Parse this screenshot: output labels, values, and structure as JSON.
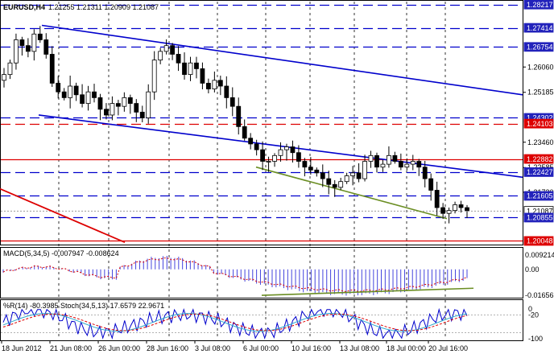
{
  "symbol_header": {
    "symbol": "EURUSD,H4",
    "ohlc": "1.21255 1.21311 1.20909 1.21087"
  },
  "main_panel": {
    "price_range": [
      1.1995,
      1.2832
    ],
    "y_ticks": [
      "1.26060",
      "1.25185",
      "1.23460",
      "1.22585",
      "1.21730"
    ],
    "level_badges": [
      {
        "label": "1.28217",
        "price": 1.28217,
        "style": "blue-dashed"
      },
      {
        "label": "1.27414",
        "price": 1.27414,
        "style": "blue-dashed"
      },
      {
        "label": "1.26754",
        "price": 1.26754,
        "style": "blue-dashed"
      },
      {
        "label": "1.24302",
        "price": 1.24302,
        "style": "blue-dashed"
      },
      {
        "label": "1.24103",
        "price": 1.24103,
        "style": "red-dashed"
      },
      {
        "label": "1.22882",
        "price": 1.22882,
        "style": "red-solid"
      },
      {
        "label": "1.22427",
        "price": 1.22427,
        "style": "blue-dashed"
      },
      {
        "label": "1.21605",
        "price": 1.21605,
        "style": "blue-dashed"
      },
      {
        "label": "1.21087",
        "price": 1.21087,
        "style": "current-price"
      },
      {
        "label": "1.20855",
        "price": 1.20855,
        "style": "blue-dashed"
      },
      {
        "label": "1.20048",
        "price": 1.20048,
        "style": "red-solid"
      }
    ]
  },
  "macd_panel": {
    "label": "MACD(5,34,5) -0.007947 -0.008624",
    "range": [
      -0.0175,
      0.0132
    ],
    "ticks": [
      {
        "label": "0.009214",
        "value": 0.009214
      },
      {
        "label": "0.00",
        "value": 0
      },
      {
        "label": "-0.016565",
        "value": -0.016565
      }
    ]
  },
  "stoch_panel": {
    "label": "%R(14) -80.3985  Stoch(34,5,13) 17.6579 22.9671",
    "ticks": [
      {
        "label": "0",
        "value": 100
      },
      {
        "label": "-20",
        "value": 80
      },
      {
        "label": "-100",
        "value": 0
      }
    ]
  },
  "time_axis": [
    "18 Jun 2012",
    "21 Jun 08:00",
    "26 Jun 00:00",
    "28 Jun 16:00",
    "3 Jul 08:00",
    "6 Jul 00:00",
    "10 Jul 16:00",
    "13 Jul 08:00",
    "18 Jul 00:00",
    "20 Jul 16:00"
  ],
  "colors": {
    "candle": "#000000",
    "channel": "#0000cc",
    "level_blue": "#0000cc",
    "level_red": "#dd0000",
    "trend_green": "#6b8e23",
    "macd_hist": "#4444dd",
    "signal": "#dd0000",
    "stoch_main": "#0000cc",
    "stoch_signal": "#dd0000"
  },
  "chart_data": {
    "type": "candlestick",
    "y_range": [
      1.1995,
      1.2832
    ],
    "close_series": [
      1.258,
      1.262,
      1.27,
      1.268,
      1.266,
      1.272,
      1.27,
      1.265,
      1.255,
      1.252,
      1.25,
      1.254,
      1.251,
      1.248,
      1.252,
      1.25,
      1.246,
      1.244,
      1.248,
      1.247,
      1.25,
      1.248,
      1.245,
      1.243,
      1.252,
      1.263,
      1.266,
      1.268,
      1.265,
      1.262,
      1.258,
      1.262,
      1.26,
      1.255,
      1.253,
      1.256,
      1.254,
      1.25,
      1.247,
      1.24,
      1.236,
      1.234,
      1.232,
      1.228,
      1.228,
      1.23,
      1.232,
      1.233,
      1.231,
      1.228,
      1.226,
      1.225,
      1.224,
      1.222,
      1.22,
      1.219,
      1.221,
      1.223,
      1.224,
      1.222,
      1.228,
      1.23,
      1.226,
      1.227,
      1.23,
      1.228,
      1.226,
      1.227,
      1.228,
      1.226,
      1.222,
      1.218,
      1.212,
      1.21,
      1.211,
      1.213,
      1.212,
      1.211
    ]
  }
}
